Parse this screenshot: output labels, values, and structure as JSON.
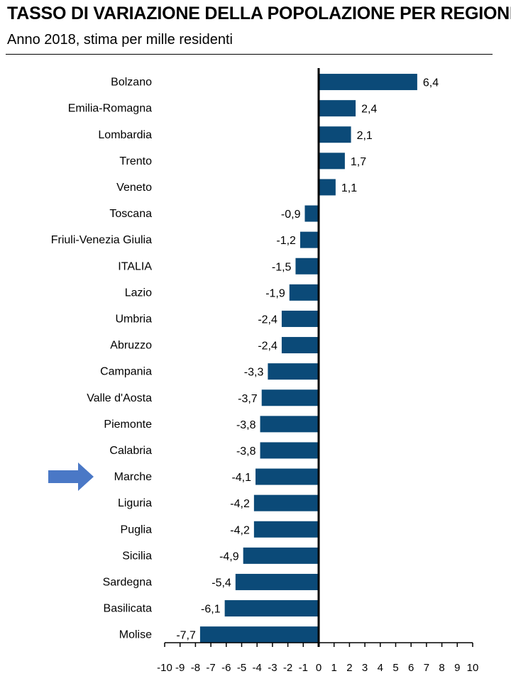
{
  "header": {
    "title": "TASSO DI VARIAZIONE DELLA POPOLAZIONE PER REGIONE.",
    "subtitle": "Anno 2018, stima per mille residenti"
  },
  "chart_data": {
    "type": "bar",
    "orientation": "horizontal",
    "title": "TASSO DI VARIAZIONE DELLA POPOLAZIONE PER REGIONE.",
    "subtitle": "Anno 2018, stima per mille residenti",
    "categories": [
      "Bolzano",
      "Emilia-Romagna",
      "Lombardia",
      "Trento",
      "Veneto",
      "Toscana",
      "Friuli-Venezia Giulia",
      "ITALIA",
      "Lazio",
      "Umbria",
      "Abruzzo",
      "Campania",
      "Valle d'Aosta",
      "Piemonte",
      "Calabria",
      "Marche",
      "Liguria",
      "Puglia",
      "Sicilia",
      "Sardegna",
      "Basilicata",
      "Molise"
    ],
    "values": [
      6.4,
      2.4,
      2.1,
      1.7,
      1.1,
      -0.9,
      -1.2,
      -1.5,
      -1.9,
      -2.4,
      -2.4,
      -3.3,
      -3.7,
      -3.8,
      -3.8,
      -4.1,
      -4.2,
      -4.2,
      -4.9,
      -5.4,
      -6.1,
      -7.7
    ],
    "value_labels": [
      "6,4",
      "2,4",
      "2,1",
      "1,7",
      "1,1",
      "-0,9",
      "-1,2",
      "-1,5",
      "-1,9",
      "-2,4",
      "-2,4",
      "-3,3",
      "-3,7",
      "-3,8",
      "-3,8",
      "-4,1",
      "-4,2",
      "-4,2",
      "-4,9",
      "-5,4",
      "-6,1",
      "-7,7"
    ],
    "xlim": [
      -10,
      10
    ],
    "xticks": [
      -10,
      -9,
      -8,
      -7,
      -6,
      -5,
      -4,
      -3,
      -2,
      -1,
      0,
      1,
      2,
      3,
      4,
      5,
      6,
      7,
      8,
      9,
      10
    ],
    "xtick_labels": [
      "-10",
      "-9",
      "-8",
      "-7",
      "-6",
      "-5",
      "-4",
      "-3",
      "-2",
      "-1",
      "0",
      "1",
      "2",
      "3",
      "4",
      "5",
      "6",
      "7",
      "8",
      "9",
      "10"
    ],
    "xlabel": "",
    "ylabel": "",
    "grid": false,
    "legend": "none",
    "bar_color": "#0b4a78",
    "highlight_category": "Marche",
    "highlight_arrow_color": "#4a78c6"
  }
}
